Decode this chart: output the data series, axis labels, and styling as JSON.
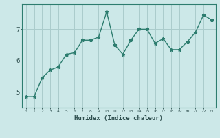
{
  "x": [
    0,
    1,
    2,
    3,
    4,
    5,
    6,
    7,
    8,
    9,
    10,
    11,
    12,
    13,
    14,
    15,
    16,
    17,
    18,
    19,
    20,
    21,
    22,
    23
  ],
  "y": [
    4.85,
    4.85,
    5.45,
    5.7,
    5.8,
    6.2,
    6.25,
    6.65,
    6.65,
    6.75,
    7.55,
    6.5,
    6.2,
    6.65,
    7.0,
    7.0,
    6.55,
    6.7,
    6.35,
    6.35,
    6.6,
    6.9,
    7.45,
    7.3
  ],
  "xlabel": "Humidex (Indice chaleur)",
  "bg_color": "#cce8e8",
  "line_color": "#2d7d6f",
  "grid_color": "#aacccc",
  "text_color": "#2d4d4d",
  "ylim": [
    4.5,
    7.8
  ],
  "yticks": [
    5,
    6,
    7
  ],
  "xlim": [
    -0.5,
    23.5
  ]
}
